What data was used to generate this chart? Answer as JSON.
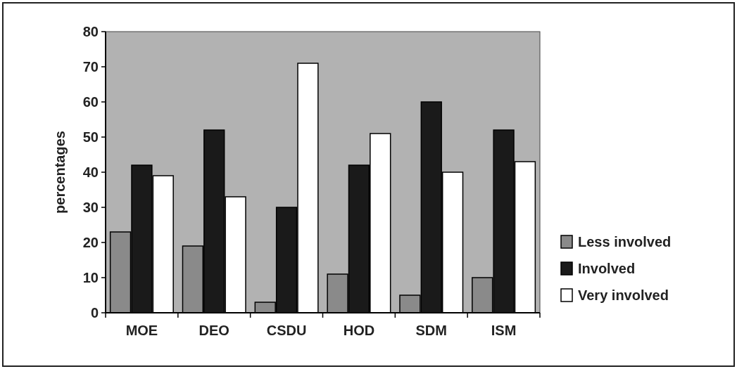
{
  "chart_data": {
    "type": "bar",
    "ylabel": "percentages",
    "categories": [
      "MOE",
      "DEO",
      "CSDU",
      "HOD",
      "SDM",
      "ISM"
    ],
    "series": [
      {
        "name": "Less involved",
        "color": "#8a8a8a",
        "values": [
          23,
          19,
          3,
          11,
          5,
          10
        ]
      },
      {
        "name": "Involved",
        "color": "#1a1a1a",
        "values": [
          42,
          52,
          30,
          42,
          60,
          52
        ]
      },
      {
        "name": "Very involved",
        "color": "#ffffff",
        "values": [
          39,
          33,
          71,
          51,
          40,
          43
        ]
      }
    ],
    "ylim": [
      0,
      80
    ],
    "yticks": [
      0,
      10,
      20,
      30,
      40,
      50,
      60,
      70,
      80
    ],
    "grid": false,
    "legend": "right"
  }
}
